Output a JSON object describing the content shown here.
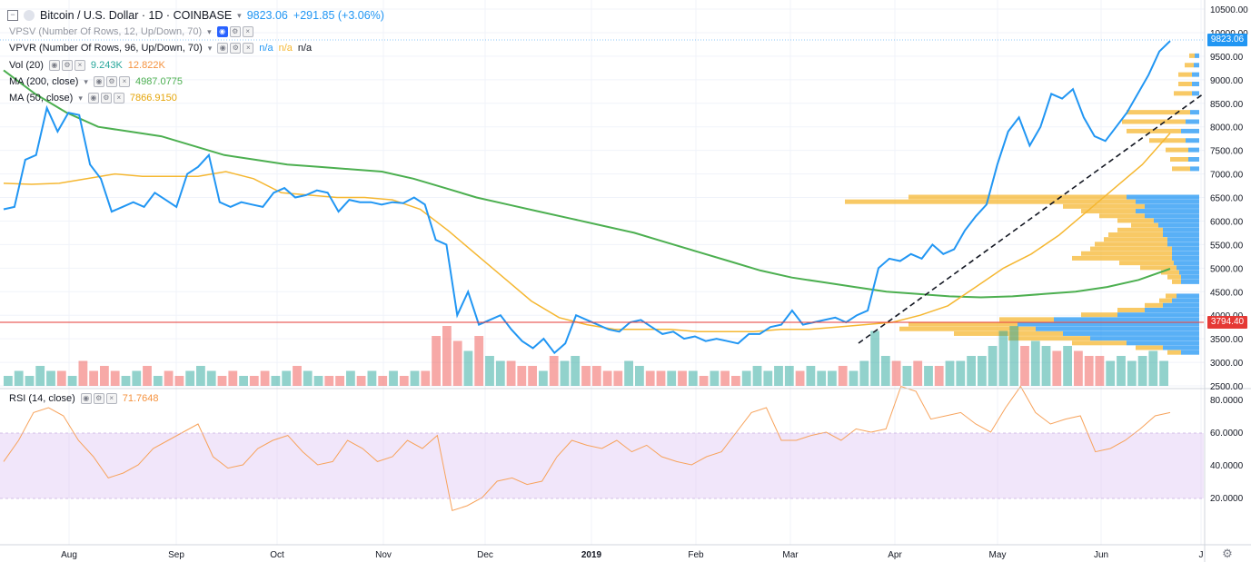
{
  "header": {
    "symbol": "Bitcoin / U.S. Dollar · 1D · COINBASE",
    "last_price": "9823.06",
    "change": "+291.85 (+3.06%)"
  },
  "indicators": {
    "vpsv": {
      "label": "VPSV (Number Of Rows, 12, Up/Down, 70)"
    },
    "vpvr": {
      "label": "VPVR (Number Of Rows, 96, Up/Down, 70)",
      "v1": "n/a",
      "v2": "n/a",
      "v3": "n/a"
    },
    "vol": {
      "label": "Vol (20)",
      "v1": "9.243K",
      "v2": "12.822K"
    },
    "ma200": {
      "label": "MA (200, close)",
      "value": "4987.0775"
    },
    "ma50": {
      "label": "MA (50, close)",
      "value": "7866.9150"
    },
    "rsi": {
      "label": "RSI (14, close)",
      "value": "71.7648"
    }
  },
  "price_axis": {
    "ticks": [
      "10500.00",
      "10000.00",
      "9500.00",
      "9000.00",
      "8500.00",
      "8000.00",
      "7500.00",
      "7000.00",
      "6500.00",
      "6000.00",
      "5500.00",
      "5000.00",
      "4500.00",
      "4000.00",
      "3500.00",
      "3000.00",
      "2500.00"
    ],
    "last_tag": "9823.06",
    "line_tag": "3794.40"
  },
  "rsi_axis": {
    "ticks": [
      "80.0000",
      "60.0000",
      "40.0000",
      "20.0000"
    ]
  },
  "time_axis": {
    "labels": [
      "Aug",
      "Sep",
      "Oct",
      "Nov",
      "Dec",
      "2019",
      "Feb",
      "Mar",
      "Apr",
      "May",
      "Jun",
      "J"
    ]
  },
  "colors": {
    "price_line": "#2196f3",
    "ma50": "#f5b731",
    "ma200": "#4caf50",
    "vol_up": "#26a69a",
    "vol_down": "#ef5350",
    "hline": "#e53935",
    "rsi": "#f7a35c",
    "rsi_band": "#e1c7f5"
  },
  "chart_data": [
    {
      "type": "line",
      "title": "Bitcoin / U.S. Dollar · 1D · COINBASE",
      "ylim": [
        2500,
        10500
      ],
      "series": [
        {
          "name": "Bitcoin / U.S. Dollar",
          "values": [
            6250,
            6300,
            7300,
            7400,
            8400,
            7900,
            8300,
            8250,
            7200,
            6900,
            6200,
            6300,
            6400,
            6300,
            6600,
            6450,
            6300,
            7000,
            7150,
            7400,
            6400,
            6300,
            6400,
            6350,
            6300,
            6600,
            6700,
            6500,
            6550,
            6650,
            6600,
            6200,
            6450,
            6400,
            6400,
            6350,
            6400,
            6380,
            6500,
            6350,
            5600,
            5500,
            4000,
            4500,
            3800,
            3900,
            4000,
            3700,
            3450,
            3300,
            3500,
            3200,
            3400,
            4000,
            3900,
            3800,
            3700,
            3650,
            3850,
            3900,
            3750,
            3600,
            3650,
            3500,
            3550,
            3450,
            3500,
            3450,
            3400,
            3600,
            3600,
            3750,
            3800,
            4100,
            3800,
            3850,
            3900,
            3950,
            3850,
            4000,
            4100,
            5000,
            5200,
            5150,
            5300,
            5200,
            5500,
            5300,
            5400,
            5800,
            6100,
            6350,
            7200,
            7900,
            8200,
            7600,
            8000,
            8700,
            8600,
            8800,
            8200,
            7800,
            7700,
            8000,
            8300,
            8700,
            9100,
            9600,
            9823
          ]
        },
        {
          "name": "MA (50, close)",
          "values": [
            6800,
            6780,
            6800,
            6900,
            7000,
            6950,
            6950,
            6950,
            7050,
            6900,
            6600,
            6550,
            6500,
            6500,
            6450,
            6250,
            5800,
            5300,
            4800,
            4300,
            3950,
            3800,
            3700,
            3700,
            3700,
            3650,
            3650,
            3650,
            3700,
            3700,
            3750,
            3800,
            3850,
            4000,
            4200,
            4600,
            5000,
            5300,
            5700,
            6200,
            6700,
            7200,
            7867
          ]
        },
        {
          "name": "MA (200, close)",
          "values": [
            9200,
            8700,
            8300,
            8000,
            7900,
            7800,
            7600,
            7400,
            7300,
            7200,
            7150,
            7100,
            7050,
            6900,
            6700,
            6500,
            6350,
            6200,
            6050,
            5900,
            5750,
            5550,
            5350,
            5150,
            4950,
            4800,
            4700,
            4600,
            4500,
            4450,
            4400,
            4380,
            4400,
            4450,
            4500,
            4600,
            4750,
            4987
          ]
        }
      ]
    },
    {
      "type": "bar",
      "title": "Vol (20)",
      "note": "daily volume bars, up=teal down=red (relative heights)",
      "series": [
        {
          "name": "Volume",
          "values": [
            2,
            3,
            2,
            4,
            3,
            3,
            2,
            5,
            3,
            4,
            3,
            2,
            3,
            4,
            2,
            3,
            2,
            3,
            4,
            3,
            2,
            3,
            2,
            2,
            3,
            2,
            3,
            4,
            3,
            2,
            2,
            2,
            3,
            2,
            3,
            2,
            3,
            2,
            3,
            3,
            10,
            12,
            9,
            7,
            10,
            6,
            5,
            5,
            4,
            4,
            3,
            6,
            5,
            6,
            4,
            4,
            3,
            3,
            5,
            4,
            3,
            3,
            3,
            3,
            3,
            2,
            3,
            3,
            2,
            3,
            4,
            3,
            4,
            4,
            3,
            4,
            3,
            3,
            4,
            3,
            5,
            11,
            6,
            5,
            4,
            5,
            4,
            4,
            5,
            5,
            6,
            6,
            8,
            11,
            12,
            8,
            9,
            8,
            7,
            8,
            7,
            6,
            6,
            5,
            6,
            5,
            6,
            7,
            5
          ]
        }
      ]
    },
    {
      "type": "line",
      "title": "RSI (14, close)",
      "ylim": [
        0,
        100
      ],
      "series": [
        {
          "name": "RSI (14, close)",
          "values": [
            42,
            55,
            72,
            75,
            70,
            55,
            45,
            32,
            35,
            40,
            50,
            55,
            60,
            65,
            45,
            38,
            40,
            50,
            55,
            58,
            48,
            40,
            42,
            55,
            50,
            42,
            45,
            55,
            50,
            58,
            12,
            15,
            20,
            30,
            32,
            28,
            30,
            45,
            55,
            52,
            50,
            55,
            48,
            52,
            45,
            42,
            40,
            45,
            48,
            60,
            72,
            75,
            55,
            55,
            58,
            60,
            55,
            62,
            60,
            62,
            88,
            85,
            68,
            70,
            72,
            65,
            60,
            75,
            88,
            72,
            65,
            68,
            70,
            48,
            50,
            55,
            62,
            70,
            72
          ]
        }
      ]
    }
  ]
}
